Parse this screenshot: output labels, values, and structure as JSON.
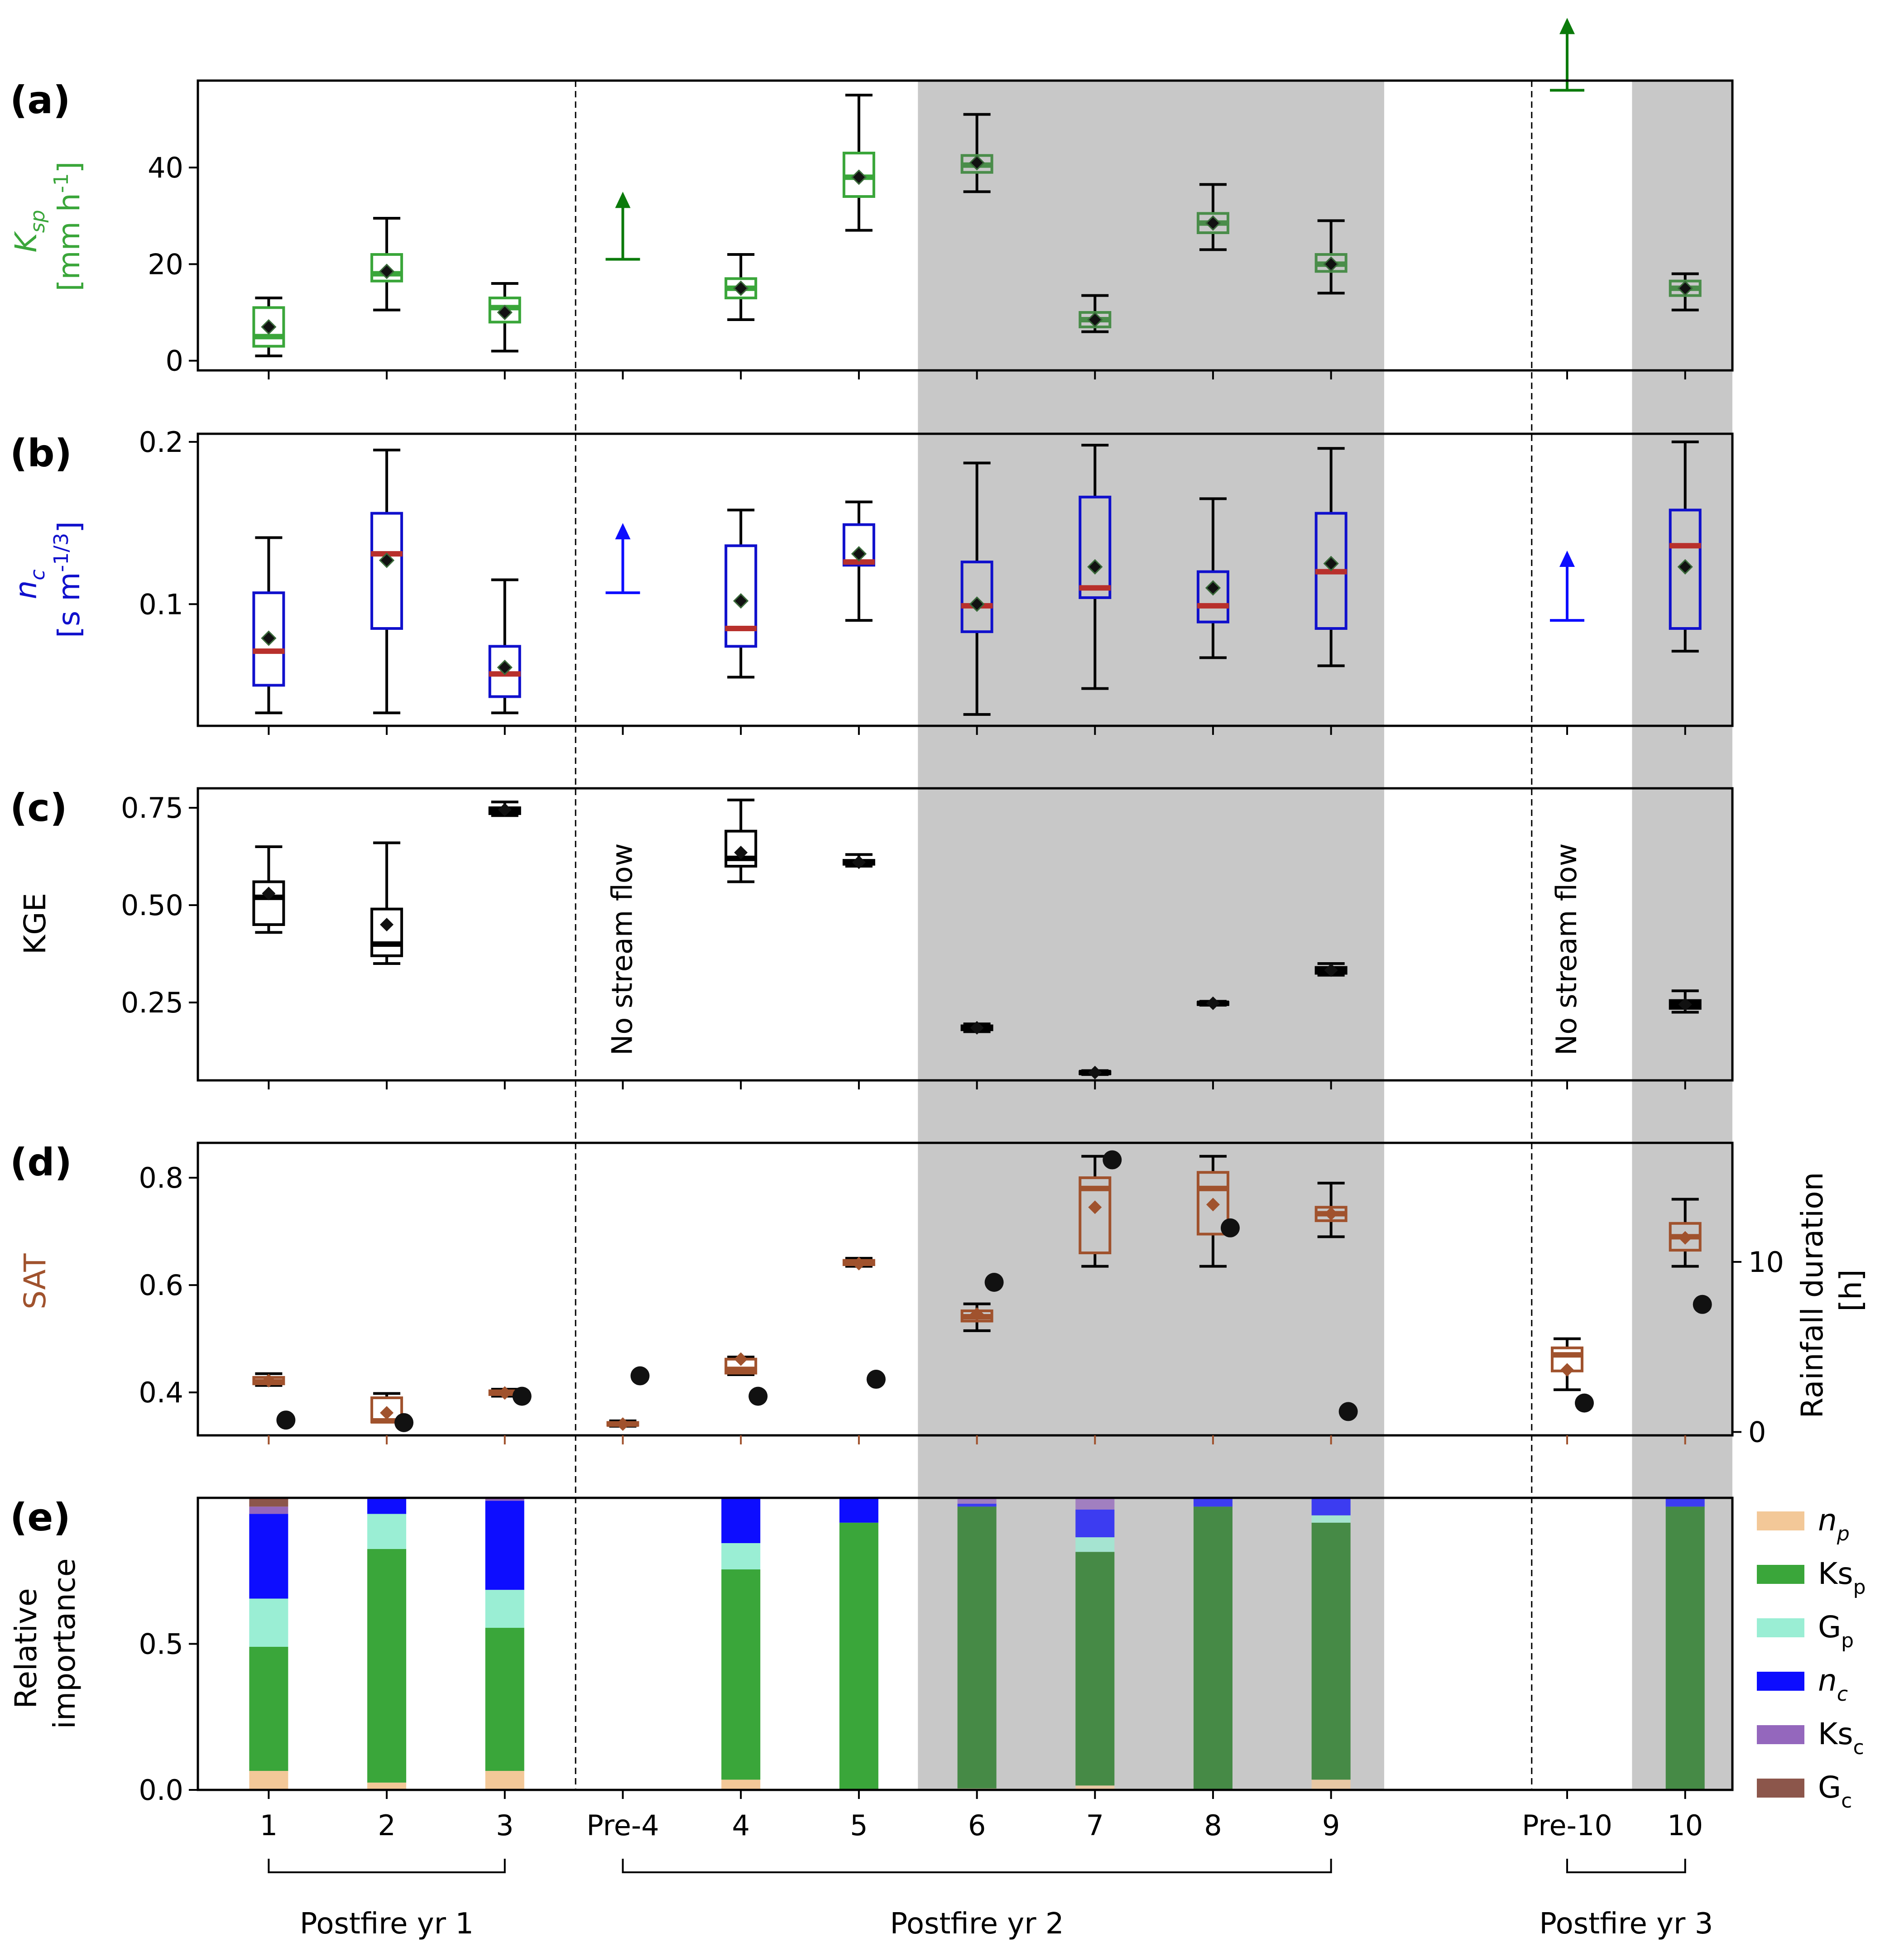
{
  "chart_data": [
    {
      "type": "box",
      "panel_label": "(a)",
      "ylabel_symbol": "K",
      "ylabel_sub": "sp",
      "ylabel_unit": "[mm h",
      "ylabel_unit_sup": "-1",
      "ylabel_unit_close": "]",
      "ylim": [
        -2,
        58
      ],
      "yticks": [
        0,
        20,
        40
      ],
      "ytick_labels": [
        "0",
        "20",
        "40"
      ],
      "color": "#3aa63a",
      "median_color": "#3aa63a",
      "boxes": [
        {
          "x": 1,
          "whislo": 1,
          "q1": 3,
          "med": 5,
          "q3": 11,
          "whishi": 13,
          "mean": 7
        },
        {
          "x": 2,
          "whislo": 10.5,
          "q1": 16.5,
          "med": 18,
          "q3": 22,
          "whishi": 29.5,
          "mean": 18.5
        },
        {
          "x": 3,
          "whislo": 2,
          "q1": 8,
          "med": 11,
          "q3": 13,
          "whishi": 16,
          "mean": 10
        },
        {
          "x": 5,
          "whislo": 8.5,
          "q1": 13,
          "med": 15,
          "q3": 17,
          "whishi": 22,
          "mean": 15
        },
        {
          "x": 6,
          "whislo": 27,
          "q1": 34,
          "med": 38,
          "q3": 43,
          "whishi": 55,
          "mean": 38
        },
        {
          "x": 7,
          "whislo": 35,
          "q1": 39,
          "med": 40.5,
          "q3": 42.5,
          "whishi": 51,
          "mean": 41
        },
        {
          "x": 8,
          "whislo": 6,
          "q1": 7,
          "med": 8.5,
          "q3": 10,
          "whishi": 13.5,
          "mean": 8.5
        },
        {
          "x": 9,
          "whislo": 23,
          "q1": 26.5,
          "med": 28.5,
          "q3": 30.5,
          "whishi": 36.5,
          "mean": 28.5
        },
        {
          "x": 10,
          "whislo": 14,
          "q1": 18.5,
          "med": 20,
          "q3": 22,
          "whishi": 29,
          "mean": 20
        },
        {
          "x": 13,
          "whislo": 10.5,
          "q1": 13.5,
          "med": 15,
          "q3": 16.5,
          "whishi": 18,
          "mean": 15
        }
      ],
      "lower_bounds": [
        {
          "x": 4,
          "from": 21,
          "to": 35
        },
        {
          "x": 12,
          "from": 56,
          "to": 71
        }
      ]
    },
    {
      "type": "box",
      "panel_label": "(b)",
      "ylabel_symbol": "n",
      "ylabel_sub": "c",
      "ylabel_unit": "[s m",
      "ylabel_unit_sup": "-1/3",
      "ylabel_unit_close": "]",
      "ylim": [
        0.025,
        0.205
      ],
      "yticks": [
        0.1,
        0.2
      ],
      "ytick_labels": [
        "0.1",
        "0.2"
      ],
      "color": "#1010cc",
      "median_color": "#b8302c",
      "boxes": [
        {
          "x": 1,
          "whislo": 0.033,
          "q1": 0.05,
          "med": 0.071,
          "q3": 0.107,
          "whishi": 0.141,
          "mean": 0.079
        },
        {
          "x": 2,
          "whislo": 0.033,
          "q1": 0.085,
          "med": 0.131,
          "q3": 0.156,
          "whishi": 0.195,
          "mean": 0.127
        },
        {
          "x": 3,
          "whislo": 0.033,
          "q1": 0.043,
          "med": 0.057,
          "q3": 0.074,
          "whishi": 0.115,
          "mean": 0.061
        },
        {
          "x": 5,
          "whislo": 0.055,
          "q1": 0.074,
          "med": 0.085,
          "q3": 0.136,
          "whishi": 0.158,
          "mean": 0.102
        },
        {
          "x": 6,
          "whislo": 0.09,
          "q1": 0.124,
          "med": 0.126,
          "q3": 0.149,
          "whishi": 0.163,
          "mean": 0.131
        },
        {
          "x": 7,
          "whislo": 0.032,
          "q1": 0.083,
          "med": 0.099,
          "q3": 0.126,
          "whishi": 0.187,
          "mean": 0.1
        },
        {
          "x": 8,
          "whislo": 0.048,
          "q1": 0.104,
          "med": 0.11,
          "q3": 0.166,
          "whishi": 0.198,
          "mean": 0.123
        },
        {
          "x": 9,
          "whislo": 0.067,
          "q1": 0.089,
          "med": 0.099,
          "q3": 0.12,
          "whishi": 0.165,
          "mean": 0.11
        },
        {
          "x": 10,
          "whislo": 0.062,
          "q1": 0.085,
          "med": 0.12,
          "q3": 0.156,
          "whishi": 0.196,
          "mean": 0.125
        },
        {
          "x": 13,
          "whislo": 0.071,
          "q1": 0.085,
          "med": 0.136,
          "q3": 0.158,
          "whishi": 0.2,
          "mean": 0.123
        }
      ],
      "lower_bounds": [
        {
          "x": 4,
          "from": 0.107,
          "to": 0.15
        },
        {
          "x": 12,
          "from": 0.09,
          "to": 0.133
        }
      ]
    },
    {
      "type": "box",
      "panel_label": "(c)",
      "ylabel_symbol": "KGE",
      "ylim": [
        0.05,
        0.8
      ],
      "yticks": [
        0.25,
        0.5,
        0.75
      ],
      "ytick_labels": [
        "0.25",
        "0.50",
        "0.75"
      ],
      "color": "#000000",
      "median_color": "#000000",
      "boxes": [
        {
          "x": 1,
          "whislo": 0.43,
          "q1": 0.45,
          "med": 0.52,
          "q3": 0.56,
          "whishi": 0.65,
          "mean": 0.53
        },
        {
          "x": 2,
          "whislo": 0.35,
          "q1": 0.37,
          "med": 0.4,
          "q3": 0.49,
          "whishi": 0.66,
          "mean": 0.45
        },
        {
          "x": 3,
          "whislo": 0.73,
          "q1": 0.735,
          "med": 0.745,
          "q3": 0.75,
          "whishi": 0.765,
          "mean": 0.745
        },
        {
          "x": 5,
          "whislo": 0.56,
          "q1": 0.6,
          "med": 0.62,
          "q3": 0.69,
          "whishi": 0.77,
          "mean": 0.635
        },
        {
          "x": 6,
          "whislo": 0.6,
          "q1": 0.605,
          "med": 0.61,
          "q3": 0.615,
          "whishi": 0.63,
          "mean": 0.61
        },
        {
          "x": 7,
          "whislo": 0.175,
          "q1": 0.18,
          "med": 0.185,
          "q3": 0.19,
          "whishi": 0.195,
          "mean": 0.185
        },
        {
          "x": 8,
          "whislo": 0.065,
          "q1": 0.068,
          "med": 0.07,
          "q3": 0.072,
          "whishi": 0.075,
          "mean": 0.07
        },
        {
          "x": 9,
          "whislo": 0.243,
          "q1": 0.245,
          "med": 0.248,
          "q3": 0.25,
          "whishi": 0.253,
          "mean": 0.248
        },
        {
          "x": 10,
          "whislo": 0.32,
          "q1": 0.325,
          "med": 0.333,
          "q3": 0.34,
          "whishi": 0.35,
          "mean": 0.333
        },
        {
          "x": 13,
          "whislo": 0.225,
          "q1": 0.235,
          "med": 0.245,
          "q3": 0.255,
          "whishi": 0.28,
          "mean": 0.245
        }
      ],
      "notes": [
        {
          "x": 4,
          "text": "No stream flow"
        },
        {
          "x": 12,
          "text": "No stream flow"
        }
      ]
    },
    {
      "type": "box",
      "panel_label": "(d)",
      "ylabel_symbol": "SAT",
      "ylim": [
        0.32,
        0.865
      ],
      "yticks": [
        0.4,
        0.6,
        0.8
      ],
      "ytick_labels": [
        "0.4",
        "0.6",
        "0.8"
      ],
      "color": "#a0522d",
      "median_color": "#a0522d",
      "boxes": [
        {
          "x": 1,
          "whislo": 0.413,
          "q1": 0.416,
          "med": 0.42,
          "q3": 0.428,
          "whishi": 0.435,
          "mean": 0.422
        },
        {
          "x": 2,
          "whislo": 0.345,
          "q1": 0.345,
          "med": 0.347,
          "q3": 0.39,
          "whishi": 0.398,
          "mean": 0.362
        },
        {
          "x": 3,
          "whislo": 0.393,
          "q1": 0.396,
          "med": 0.399,
          "q3": 0.403,
          "whishi": 0.406,
          "mean": 0.399
        },
        {
          "x": 4,
          "whislo": 0.337,
          "q1": 0.339,
          "med": 0.341,
          "q3": 0.344,
          "whishi": 0.347,
          "mean": 0.341
        },
        {
          "x": 5,
          "whislo": 0.433,
          "q1": 0.436,
          "med": 0.443,
          "q3": 0.462,
          "whishi": 0.466,
          "mean": 0.462
        },
        {
          "x": 6,
          "whislo": 0.635,
          "q1": 0.638,
          "med": 0.642,
          "q3": 0.646,
          "whishi": 0.65,
          "mean": 0.64
        },
        {
          "x": 7,
          "whislo": 0.515,
          "q1": 0.533,
          "med": 0.541,
          "q3": 0.552,
          "whishi": 0.565,
          "mean": 0.546
        },
        {
          "x": 8,
          "whislo": 0.635,
          "q1": 0.66,
          "med": 0.78,
          "q3": 0.8,
          "whishi": 0.84,
          "mean": 0.745
        },
        {
          "x": 9,
          "whislo": 0.635,
          "q1": 0.695,
          "med": 0.78,
          "q3": 0.81,
          "whishi": 0.84,
          "mean": 0.75
        },
        {
          "x": 10,
          "whislo": 0.69,
          "q1": 0.72,
          "med": 0.733,
          "q3": 0.745,
          "whishi": 0.79,
          "mean": 0.733
        },
        {
          "x": 12,
          "whislo": 0.405,
          "q1": 0.44,
          "med": 0.47,
          "q3": 0.483,
          "whishi": 0.5,
          "mean": 0.442
        },
        {
          "x": 13,
          "whislo": 0.635,
          "q1": 0.665,
          "med": 0.69,
          "q3": 0.715,
          "whishi": 0.76,
          "mean": 0.688
        }
      ],
      "secondary_axis": {
        "label_line1": "Rainfall duration",
        "label_line2": "[h]",
        "ylim": [
          -0.2,
          17.0
        ],
        "yticks": [
          0,
          10
        ],
        "ytick_labels": [
          "0",
          "10"
        ],
        "points": [
          {
            "x": 1,
            "y": 0.7
          },
          {
            "x": 2,
            "y": 0.55
          },
          {
            "x": 3,
            "y": 2.1
          },
          {
            "x": 4,
            "y": 3.3
          },
          {
            "x": 5,
            "y": 2.1
          },
          {
            "x": 6,
            "y": 3.1
          },
          {
            "x": 7,
            "y": 8.8
          },
          {
            "x": 8,
            "y": 16.0
          },
          {
            "x": 9,
            "y": 12.0
          },
          {
            "x": 10,
            "y": 1.2
          },
          {
            "x": 12,
            "y": 1.7
          },
          {
            "x": 13,
            "y": 7.5
          }
        ]
      }
    },
    {
      "type": "stacked_bar",
      "panel_label": "(e)",
      "ylabel_line1": "Relative",
      "ylabel_line2": "importance",
      "ylim": [
        0,
        1.0
      ],
      "yticks": [
        0,
        0.5
      ],
      "ytick_labels": [
        "0.0",
        "0.5"
      ],
      "components": [
        {
          "key": "np",
          "base": "n",
          "sub": "p",
          "italic": true,
          "color": "#f3c898"
        },
        {
          "key": "Ksp",
          "base": "Ks",
          "sub": "p",
          "italic": false,
          "color": "#3aa63a"
        },
        {
          "key": "Gp",
          "base": "G",
          "sub": "p",
          "italic": false,
          "color": "#9aeed4"
        },
        {
          "key": "nc",
          "base": "n",
          "sub": "c",
          "italic": true,
          "color": "#0d0dff"
        },
        {
          "key": "Ksc",
          "base": "Ks",
          "sub": "c",
          "italic": false,
          "color": "#9467bd"
        },
        {
          "key": "Gc",
          "base": "G",
          "sub": "c",
          "italic": false,
          "color": "#8c564b"
        }
      ],
      "bars": [
        {
          "x": 1,
          "np": 0.065,
          "Ksp": 0.425,
          "Gp": 0.165,
          "nc": 0.29,
          "Ksc": 0.025,
          "Gc": 0.03
        },
        {
          "x": 2,
          "np": 0.025,
          "Ksp": 0.8,
          "Gp": 0.12,
          "nc": 0.055,
          "Ksc": 0.0,
          "Gc": 0.0
        },
        {
          "x": 3,
          "np": 0.065,
          "Ksp": 0.49,
          "Gp": 0.13,
          "nc": 0.305,
          "Ksc": 0.01,
          "Gc": 0.0
        },
        {
          "x": 5,
          "np": 0.035,
          "Ksp": 0.72,
          "Gp": 0.09,
          "nc": 0.155,
          "Ksc": 0.0,
          "Gc": 0.0
        },
        {
          "x": 6,
          "np": 0.0,
          "Ksp": 0.915,
          "Gp": 0.0,
          "nc": 0.085,
          "Ksc": 0.0,
          "Gc": 0.0
        },
        {
          "x": 7,
          "np": 0.005,
          "Ksp": 0.965,
          "Gp": 0.0,
          "nc": 0.01,
          "Ksc": 0.02,
          "Gc": 0.0
        },
        {
          "x": 8,
          "np": 0.015,
          "Ksp": 0.8,
          "Gp": 0.05,
          "nc": 0.095,
          "Ksc": 0.04,
          "Gc": 0.0
        },
        {
          "x": 9,
          "np": 0.0,
          "Ksp": 0.97,
          "Gp": 0.0,
          "nc": 0.03,
          "Ksc": 0.0,
          "Gc": 0.0
        },
        {
          "x": 10,
          "np": 0.035,
          "Ksp": 0.88,
          "Gp": 0.025,
          "nc": 0.06,
          "Ksc": 0.0,
          "Gc": 0.0
        },
        {
          "x": 13,
          "np": 0.0,
          "Ksp": 0.97,
          "Gp": 0.0,
          "nc": 0.03,
          "Ksc": 0.0,
          "Gc": 0.0
        }
      ]
    }
  ],
  "x_axis": {
    "positions": [
      1,
      2,
      3,
      4,
      5,
      6,
      7,
      8,
      9,
      10,
      12,
      13
    ],
    "tick_labels": [
      "1",
      "2",
      "3",
      "Pre-4",
      "4",
      "5",
      "6",
      "7",
      "8",
      "9",
      "Pre-10",
      "10"
    ],
    "xlim": [
      0.4,
      13.4
    ]
  },
  "dividers": [
    3.6,
    11.7
  ],
  "shaded_regions": [
    [
      6.5,
      10.45
    ],
    [
      12.55,
      13.4
    ]
  ],
  "groups": [
    {
      "label": "Postfire yr 1",
      "from": 1,
      "to": 3
    },
    {
      "label": "Postfire yr 2",
      "from": 4,
      "to": 10
    },
    {
      "label": "Postfire yr 3",
      "from": 12,
      "to": 13
    }
  ],
  "colors": {
    "shade": "#c8c8c8",
    "ksp_label": "#3aa63a",
    "nc_label": "#1010cc",
    "sat_label": "#a0522d",
    "arrow_a": "#0a7a0a",
    "arrow_b": "#0d0dff",
    "shaded_box_green": "#4a8d4a",
    "shaded_bar_green": "#468a46"
  }
}
